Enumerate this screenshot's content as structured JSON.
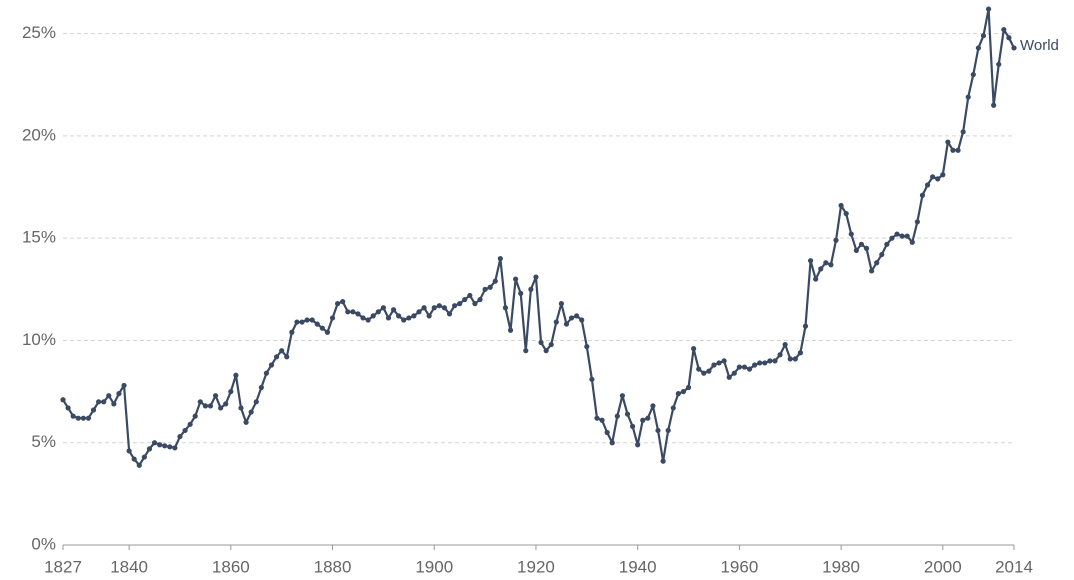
{
  "chart_data": {
    "type": "line",
    "x": [
      1827,
      1828,
      1829,
      1830,
      1831,
      1832,
      1833,
      1834,
      1835,
      1836,
      1837,
      1838,
      1839,
      1840,
      1841,
      1842,
      1843,
      1844,
      1845,
      1846,
      1847,
      1848,
      1849,
      1850,
      1851,
      1852,
      1853,
      1854,
      1855,
      1856,
      1857,
      1858,
      1859,
      1860,
      1861,
      1862,
      1863,
      1864,
      1865,
      1866,
      1867,
      1868,
      1869,
      1870,
      1871,
      1872,
      1873,
      1874,
      1875,
      1876,
      1877,
      1878,
      1879,
      1880,
      1881,
      1882,
      1883,
      1884,
      1885,
      1886,
      1887,
      1888,
      1889,
      1890,
      1891,
      1892,
      1893,
      1894,
      1895,
      1896,
      1897,
      1898,
      1899,
      1900,
      1901,
      1902,
      1903,
      1904,
      1905,
      1906,
      1907,
      1908,
      1909,
      1910,
      1911,
      1912,
      1913,
      1914,
      1915,
      1916,
      1917,
      1918,
      1919,
      1920,
      1921,
      1922,
      1923,
      1924,
      1925,
      1926,
      1927,
      1928,
      1929,
      1930,
      1931,
      1932,
      1933,
      1934,
      1935,
      1936,
      1937,
      1938,
      1939,
      1940,
      1941,
      1942,
      1943,
      1944,
      1945,
      1946,
      1947,
      1948,
      1949,
      1950,
      1951,
      1952,
      1953,
      1954,
      1955,
      1956,
      1957,
      1958,
      1959,
      1960,
      1961,
      1962,
      1963,
      1964,
      1965,
      1966,
      1967,
      1968,
      1969,
      1970,
      1971,
      1972,
      1973,
      1974,
      1975,
      1976,
      1977,
      1978,
      1979,
      1980,
      1981,
      1982,
      1983,
      1984,
      1985,
      1986,
      1987,
      1988,
      1989,
      1990,
      1991,
      1992,
      1993,
      1994,
      1995,
      1996,
      1997,
      1998,
      1999,
      2000,
      2001,
      2002,
      2003,
      2004,
      2005,
      2006,
      2007,
      2008,
      2009,
      2010,
      2011,
      2012,
      2013,
      2014
    ],
    "series": [
      {
        "name": "World",
        "color": "#3b4a63",
        "values": [
          7.1,
          6.7,
          6.3,
          6.2,
          6.2,
          6.2,
          6.6,
          7.0,
          7.0,
          7.3,
          6.9,
          7.4,
          7.8,
          4.6,
          4.2,
          3.9,
          4.3,
          4.7,
          5.0,
          4.9,
          4.85,
          4.8,
          4.75,
          5.3,
          5.6,
          5.9,
          6.3,
          7.0,
          6.8,
          6.8,
          7.3,
          6.7,
          6.9,
          7.5,
          8.3,
          6.7,
          6.0,
          6.5,
          7.0,
          7.7,
          8.4,
          8.8,
          9.2,
          9.5,
          9.2,
          10.4,
          10.9,
          10.9,
          11.0,
          11.0,
          10.8,
          10.6,
          10.4,
          11.1,
          11.8,
          11.9,
          11.4,
          11.4,
          11.3,
          11.1,
          11.0,
          11.2,
          11.4,
          11.6,
          11.1,
          11.5,
          11.2,
          11.0,
          11.1,
          11.2,
          11.4,
          11.6,
          11.2,
          11.6,
          11.7,
          11.6,
          11.3,
          11.7,
          11.8,
          12.0,
          12.2,
          11.8,
          12.0,
          12.5,
          12.6,
          12.9,
          14.0,
          11.6,
          10.5,
          13.0,
          12.3,
          9.5,
          12.5,
          13.1,
          9.9,
          9.5,
          9.8,
          10.9,
          11.8,
          10.8,
          11.1,
          11.2,
          11.0,
          9.7,
          8.1,
          6.2,
          6.1,
          5.5,
          5.0,
          6.3,
          7.3,
          6.4,
          5.8,
          4.9,
          6.1,
          6.2,
          6.8,
          5.6,
          4.1,
          5.6,
          6.7,
          7.4,
          7.5,
          7.7,
          9.6,
          8.6,
          8.4,
          8.5,
          8.8,
          8.9,
          9.0,
          8.2,
          8.4,
          8.7,
          8.7,
          8.6,
          8.8,
          8.9,
          8.9,
          9.0,
          9.0,
          9.3,
          9.8,
          9.1,
          9.1,
          9.4,
          10.7,
          13.9,
          13.0,
          13.5,
          13.8,
          13.7,
          14.9,
          16.6,
          16.2,
          15.2,
          14.4,
          14.7,
          14.5,
          13.4,
          13.8,
          14.2,
          14.7,
          15.0,
          15.2,
          15.1,
          15.1,
          14.8,
          15.8,
          17.1,
          17.6,
          18.0,
          17.9,
          18.1,
          19.7,
          19.3,
          19.3,
          20.2,
          21.9,
          23.0,
          24.3,
          24.9,
          26.2,
          21.5,
          23.5,
          25.2,
          24.8,
          24.3
        ]
      }
    ],
    "xlim": [
      1827,
      2014
    ],
    "xticks": [
      1827,
      1840,
      1860,
      1880,
      1900,
      1920,
      1940,
      1960,
      1980,
      2000,
      2014
    ],
    "ylim": [
      0,
      26.4
    ],
    "yticks": [
      {
        "value": 0,
        "label": "0%"
      },
      {
        "value": 5,
        "label": "5%"
      },
      {
        "value": 10,
        "label": "10%"
      },
      {
        "value": 15,
        "label": "15%"
      },
      {
        "value": 20,
        "label": "20%"
      },
      {
        "value": 25,
        "label": "25%"
      }
    ],
    "grid": true
  }
}
